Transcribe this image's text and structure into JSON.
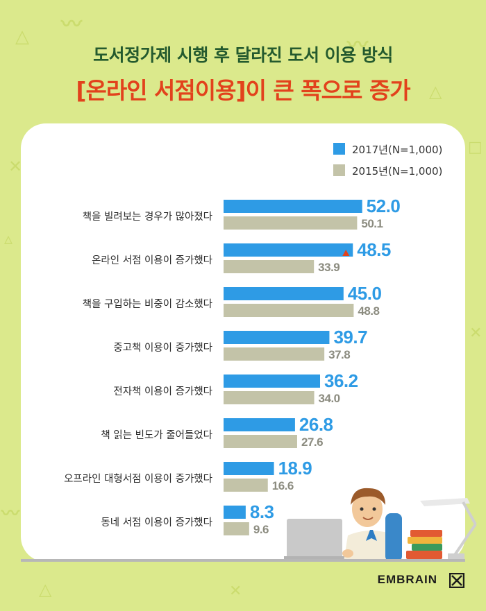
{
  "header": {
    "title": "도서정가제 시행 후 달라진 도서 이용 방식",
    "subtitle": "[온라인 서점이용]이 큰 폭으로 증가"
  },
  "brand": {
    "name": "EMBRAIN"
  },
  "colors": {
    "background": "#dbe98c",
    "series_2017": "#2e9be5",
    "series_2015": "#c3c3a8",
    "title": "#245a2e",
    "subtitle": "#e2421c",
    "highlight_marker": "#e2421c"
  },
  "chart_data": {
    "type": "bar",
    "orientation": "horizontal",
    "categories": [
      "책을 빌려보는 경우가 많아졌다",
      "온라인 서점 이용이 증가했다",
      "책을 구입하는 비중이 감소했다",
      "중고책 이용이 증가했다",
      "전자책 이용이 증가했다",
      "책 읽는 빈도가 줄어들었다",
      "오프라인 대형서점 이용이 증가했다",
      "동네 서점 이용이 증가했다"
    ],
    "series": [
      {
        "name": "2017년(N=1,000)",
        "values": [
          52.0,
          48.5,
          45.0,
          39.7,
          36.2,
          26.8,
          18.9,
          8.3
        ]
      },
      {
        "name": "2015년(N=1,000)",
        "values": [
          50.1,
          33.9,
          48.8,
          37.8,
          34.0,
          27.6,
          16.6,
          9.6
        ]
      }
    ],
    "highlight_category_index": 1,
    "legend_position": "top-right",
    "title": "",
    "xlabel": "",
    "ylabel": "",
    "grid": false
  }
}
